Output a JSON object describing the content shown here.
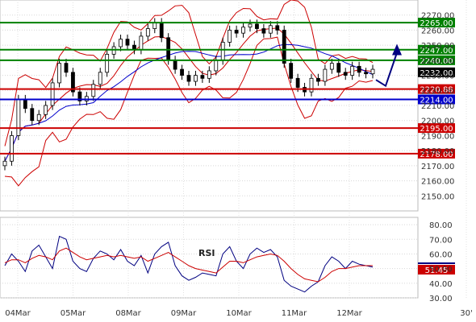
{
  "chart_data": [
    {
      "type": "line",
      "panel": "price",
      "ylim": [
        2140,
        2280
      ],
      "y_ticks": [
        "2270.00",
        "2260.00",
        "2250.00",
        "2240.00",
        "2230.00",
        "2220.00",
        "2210.00",
        "2200.00",
        "2190.00",
        "2180.00",
        "2170.00",
        "2160.00",
        "2150.00"
      ],
      "x_labels": [
        "04Mar",
        "05Mar",
        "08Mar",
        "09Mar",
        "10Mar",
        "11Mar",
        "12Mar",
        "30'"
      ],
      "grid": true,
      "close": [
        2173,
        2190,
        2214,
        2208,
        2200,
        2204,
        2210,
        2225,
        2238,
        2232,
        2219,
        2213,
        2216,
        2224,
        2232,
        2244,
        2249,
        2254,
        2250,
        2247,
        2256,
        2261,
        2265,
        2255,
        2240,
        2234,
        2230,
        2226,
        2230,
        2228,
        2233,
        2240,
        2252,
        2260,
        2258,
        2262,
        2264,
        2261,
        2258,
        2263,
        2260,
        2238,
        2228,
        2222,
        2219,
        2228,
        2226,
        2234,
        2238,
        2232,
        2230,
        2236,
        2232,
        2231,
        2234
      ],
      "lines": [
        {
          "value": 2265.0,
          "label": "2265.00",
          "color": "#008000"
        },
        {
          "value": 2247.0,
          "label": "2247.00",
          "color": "#008000"
        },
        {
          "value": 2240.0,
          "label": "2240.00",
          "color": "#008000"
        },
        {
          "value": 2232.0,
          "label": "2232.00",
          "color": "#000000"
        },
        {
          "value": 2220.88,
          "label": "2220.88",
          "color": "#cc0000"
        },
        {
          "value": 2214.0,
          "label": "2214.00",
          "color": "#0000cc"
        },
        {
          "value": 2195.0,
          "label": "2195.00",
          "color": "#cc0000"
        },
        {
          "value": 2178.0,
          "label": "2178.00",
          "color": "#cc0000"
        }
      ],
      "forecast_arrow": {
        "from": 2227,
        "via": 2223,
        "to": 2245,
        "color": "#000080"
      }
    },
    {
      "type": "line",
      "panel": "rsi",
      "name": "RSI",
      "ylim": [
        30,
        85
      ],
      "y_ticks": [
        "80.00",
        "70.00",
        "60.00",
        "50.00",
        "40.00",
        "30.00"
      ],
      "current_label": "51.45",
      "level_color": "#cc0000",
      "series": [
        {
          "values": [
            52,
            60,
            55,
            48,
            62,
            66,
            58,
            50,
            72,
            70,
            55,
            50,
            48,
            57,
            62,
            60,
            56,
            63,
            55,
            52,
            59,
            47,
            60,
            65,
            68,
            52,
            45,
            42,
            44,
            47,
            46,
            45,
            60,
            65,
            55,
            50,
            60,
            64,
            61,
            63,
            58,
            42,
            38,
            36,
            34,
            38,
            41,
            52,
            58,
            55,
            50,
            55,
            53,
            52,
            51
          ],
          "color": "#000080"
        },
        {
          "values": [
            54,
            56,
            56,
            54,
            57,
            59,
            58,
            56,
            62,
            64,
            61,
            58,
            56,
            57,
            58,
            59,
            58,
            59,
            58,
            57,
            58,
            55,
            57,
            59,
            61,
            58,
            55,
            52,
            50,
            49,
            48,
            47,
            51,
            55,
            55,
            54,
            56,
            58,
            59,
            60,
            59,
            55,
            50,
            46,
            43,
            42,
            41,
            44,
            48,
            50,
            50,
            51,
            52,
            52,
            52
          ],
          "color": "#cc0000"
        }
      ]
    }
  ]
}
